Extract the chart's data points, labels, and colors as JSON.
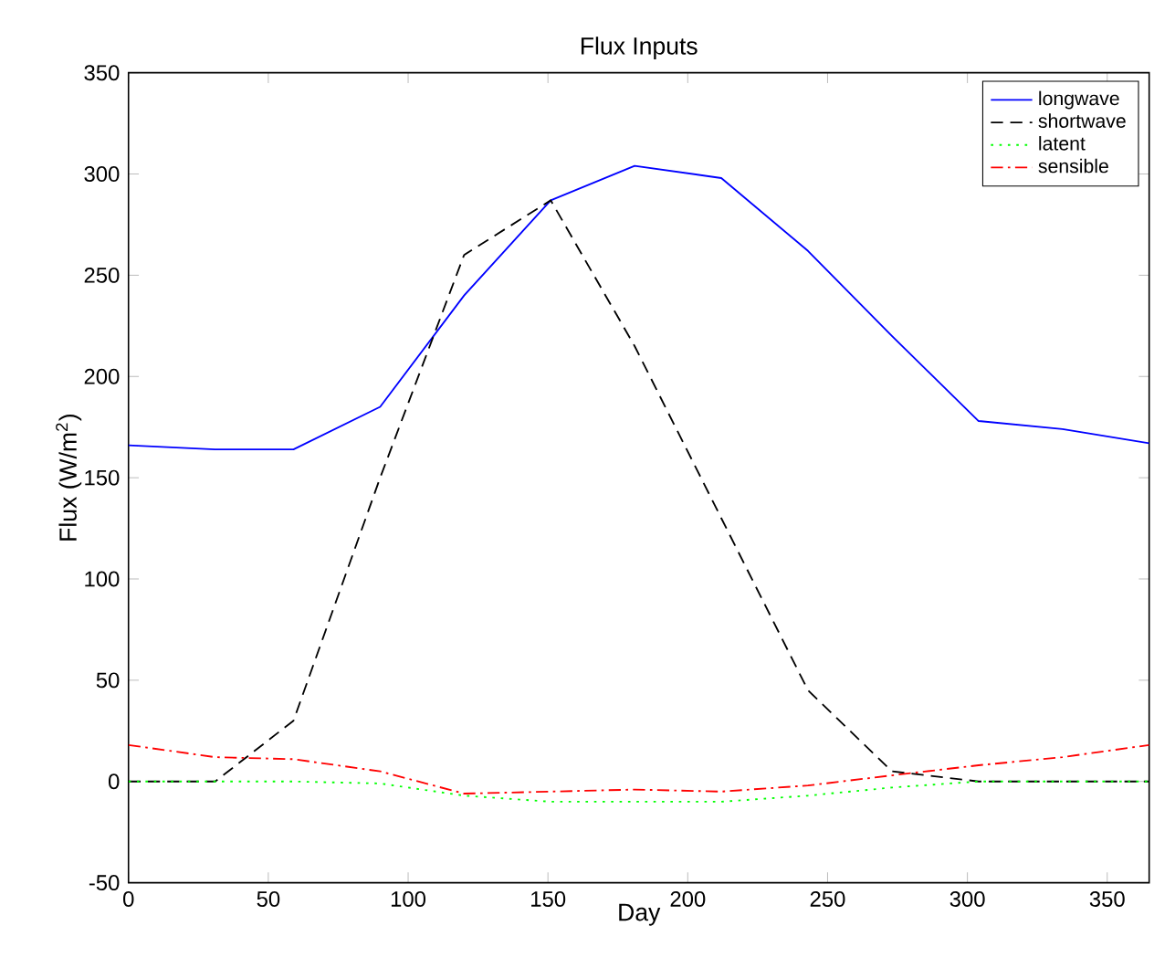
{
  "chart_data": {
    "type": "line",
    "title": "Flux Inputs",
    "xlabel": "Day",
    "ylabel": "Flux (W/m$^{2}$)",
    "x": [
      0,
      31,
      59,
      90,
      120,
      151,
      181,
      212,
      243,
      273,
      304,
      334,
      365
    ],
    "series": [
      {
        "name": "longwave",
        "color": "#0000ff",
        "line_style": "solid",
        "values": [
          166,
          164,
          164,
          185,
          240,
          287,
          304,
          298,
          262,
          220,
          178,
          174,
          167
        ]
      },
      {
        "name": "shortwave",
        "color": "#000000",
        "line_style": "dashed",
        "values": [
          0,
          0,
          30,
          150,
          260,
          287,
          215,
          130,
          45,
          5,
          0,
          0,
          0
        ]
      },
      {
        "name": "latent",
        "color": "#00ff00",
        "line_style": "dotted",
        "values": [
          0,
          0,
          0,
          -1,
          -7,
          -10,
          -10,
          -10,
          -7,
          -3,
          0,
          0,
          0
        ]
      },
      {
        "name": "sensible",
        "color": "#ff0000",
        "line_style": "dashdot",
        "values": [
          18,
          12,
          11,
          5,
          -6,
          -5,
          -4,
          -5,
          -2,
          3,
          8,
          12,
          18
        ]
      }
    ],
    "xlim": [
      0,
      365
    ],
    "ylim": [
      -50,
      350
    ],
    "xticks": [
      0,
      50,
      100,
      150,
      200,
      250,
      300,
      350
    ],
    "yticks": [
      -50,
      0,
      50,
      100,
      150,
      200,
      250,
      300,
      350
    ],
    "legend": "top right",
    "grid": false
  }
}
